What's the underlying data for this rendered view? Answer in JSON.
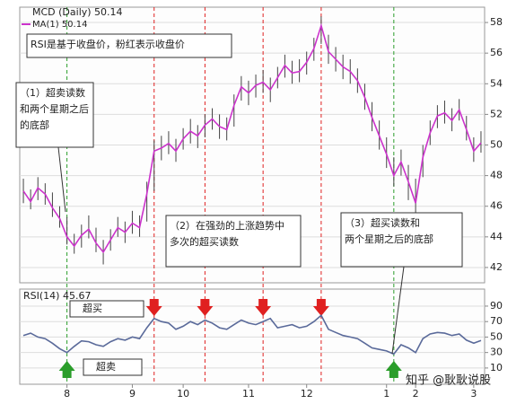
{
  "chart_data": [
    {
      "type": "hlc",
      "title": "MCD (Daily) 50.14",
      "categories": [
        null,
        null,
        null,
        null,
        null,
        null,
        "8",
        null,
        null,
        null,
        null,
        null,
        null,
        null,
        null,
        "9",
        null,
        null,
        null,
        null,
        null,
        null,
        "10",
        null,
        null,
        null,
        null,
        null,
        null,
        null,
        null,
        "11",
        null,
        null,
        null,
        null,
        null,
        null,
        null,
        "12",
        null,
        null,
        null,
        null,
        null,
        null,
        null,
        null,
        null,
        null,
        "1",
        null,
        null,
        null,
        "2",
        null,
        null,
        null,
        null,
        null,
        null,
        null,
        "3",
        null
      ],
      "high": [
        47.8,
        47.1,
        47.9,
        47.5,
        46.9,
        46.0,
        45.3,
        44.2,
        44.8,
        45.4,
        44.6,
        43.8,
        44.5,
        45.3,
        45.0,
        45.7,
        45.4,
        47.6,
        50.3,
        50.6,
        50.9,
        50.4,
        51.1,
        51.7,
        51.3,
        52.0,
        52.4,
        52.0,
        51.8,
        53.3,
        54.5,
        54.2,
        54.6,
        54.9,
        54.4,
        55.1,
        55.9,
        55.5,
        55.6,
        56.1,
        57.0,
        58.4,
        57.2,
        56.4,
        55.9,
        55.6,
        55.0,
        54.0,
        52.8,
        51.6,
        50.5,
        49.2,
        49.7,
        48.7,
        47.8,
        50.0,
        51.6,
        52.6,
        52.9,
        52.4,
        53.0,
        51.9,
        50.5,
        50.9
      ],
      "low": [
        46.2,
        45.8,
        46.4,
        46.1,
        45.3,
        44.6,
        43.5,
        42.9,
        43.3,
        43.9,
        43.0,
        42.2,
        43.1,
        44.0,
        43.6,
        44.2,
        44.0,
        45.0,
        47.0,
        49.0,
        49.4,
        48.9,
        49.7,
        50.1,
        49.8,
        50.5,
        51.0,
        50.4,
        50.3,
        51.2,
        52.9,
        52.6,
        53.1,
        53.4,
        52.8,
        53.7,
        54.4,
        54.0,
        54.1,
        54.6,
        55.5,
        56.6,
        55.3,
        54.8,
        54.3,
        54.0,
        53.4,
        52.3,
        50.9,
        49.7,
        48.5,
        47.3,
        48.0,
        46.4,
        45.5,
        47.9,
        50.0,
        51.1,
        51.4,
        50.9,
        51.6,
        50.3,
        48.9,
        49.5
      ],
      "bar_color": "#444444",
      "series": [
        {
          "name": "MA(1) 50.14",
          "color": "#cc33cc",
          "values": [
            47.0,
            46.3,
            47.2,
            46.8,
            45.9,
            45.2,
            44.0,
            43.4,
            44.1,
            44.5,
            43.6,
            43.0,
            43.8,
            44.6,
            44.3,
            44.9,
            44.6,
            46.8,
            49.6,
            49.8,
            50.1,
            49.6,
            50.4,
            50.9,
            50.6,
            51.3,
            51.7,
            51.2,
            51.0,
            52.6,
            53.8,
            53.4,
            53.9,
            54.1,
            53.6,
            54.4,
            55.2,
            54.7,
            54.8,
            55.4,
            56.3,
            57.8,
            56.1,
            55.6,
            55.1,
            54.8,
            54.2,
            53.1,
            51.8,
            50.6,
            49.4,
            48.0,
            48.9,
            47.6,
            46.2,
            49.2,
            50.8,
            51.9,
            52.1,
            51.6,
            52.3,
            51.0,
            49.6,
            50.14
          ]
        }
      ],
      "ylim": [
        41,
        59
      ],
      "yticks": [
        42,
        44,
        46,
        48,
        50,
        52,
        54,
        56,
        58
      ],
      "grid": true,
      "markers": [
        {
          "index": 6,
          "color": "#2a9d2a",
          "arrow": "up"
        },
        {
          "index": 18,
          "color": "#e02020",
          "arrow": "down"
        },
        {
          "index": 25,
          "color": "#e02020",
          "arrow": "down"
        },
        {
          "index": 33,
          "color": "#e02020",
          "arrow": "down"
        },
        {
          "index": 41,
          "color": "#e02020",
          "arrow": "down"
        },
        {
          "index": 51,
          "color": "#2a9d2a",
          "arrow": "up"
        }
      ],
      "annotations": [
        [
          "RSI是基于收盘价，粉红表示收盘价"
        ],
        [
          "（1）超卖读数",
          "和两个星期之后",
          "的底部"
        ],
        [
          "（2）在强劲的上涨趋势中",
          "多次的超买读数"
        ],
        [
          "（3）超买读数和",
          "两个星期之后的底部"
        ]
      ]
    },
    {
      "type": "line",
      "title": "RSI(14) 45.67",
      "series": [
        {
          "color": "#5a6a9a",
          "values": [
            52,
            55,
            50,
            48,
            42,
            35,
            30,
            38,
            45,
            44,
            40,
            38,
            44,
            48,
            46,
            50,
            48,
            62,
            74,
            70,
            68,
            60,
            64,
            70,
            66,
            72,
            68,
            62,
            60,
            66,
            72,
            68,
            66,
            70,
            74,
            62,
            64,
            66,
            62,
            64,
            70,
            78,
            60,
            56,
            52,
            50,
            48,
            42,
            36,
            34,
            32,
            28,
            40,
            36,
            30,
            48,
            54,
            56,
            55,
            52,
            54,
            46,
            42,
            45.67
          ]
        }
      ],
      "ylim": [
        -11,
        112
      ],
      "yticks": [
        10,
        30,
        50,
        70,
        90
      ],
      "grid": true,
      "annotations": [
        "超买",
        "超卖"
      ],
      "watermark": "知乎 @耿耿说股"
    }
  ]
}
